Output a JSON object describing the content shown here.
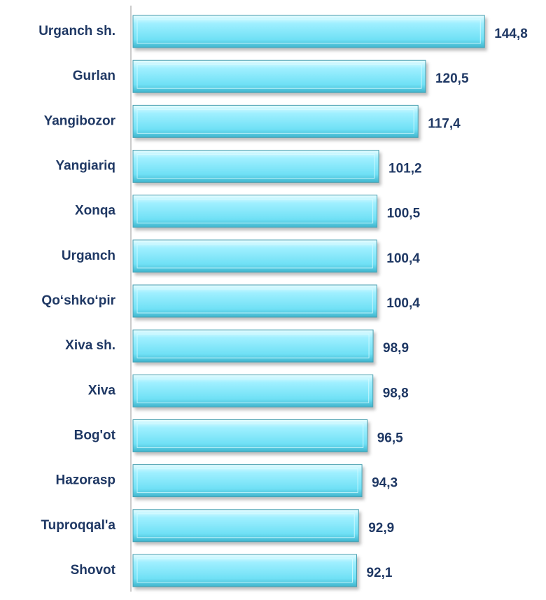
{
  "chart_data": {
    "type": "bar",
    "orientation": "horizontal",
    "categories": [
      "Urganch sh.",
      "Gurlan",
      "Yangibozor",
      "Yangiariq",
      "Xonqa",
      "Urganch",
      "Qo‘shko‘pir",
      "Xiva sh.",
      "Xiva",
      "Bog'ot",
      "Hazorasp",
      "Tuproqqal'a",
      "Shovot"
    ],
    "values": [
      144.8,
      120.5,
      117.4,
      101.2,
      100.5,
      100.4,
      100.4,
      98.9,
      98.8,
      96.5,
      94.3,
      92.9,
      92.1
    ],
    "value_labels": [
      "144,8",
      "120,5",
      "117,4",
      "101,2",
      "100,5",
      "100,4",
      "100,4",
      "98,9",
      "98,8",
      "96,5",
      "94,3",
      "92,9",
      "92,1"
    ],
    "color": "#66d9f0",
    "xlim": [
      0,
      160
    ]
  }
}
